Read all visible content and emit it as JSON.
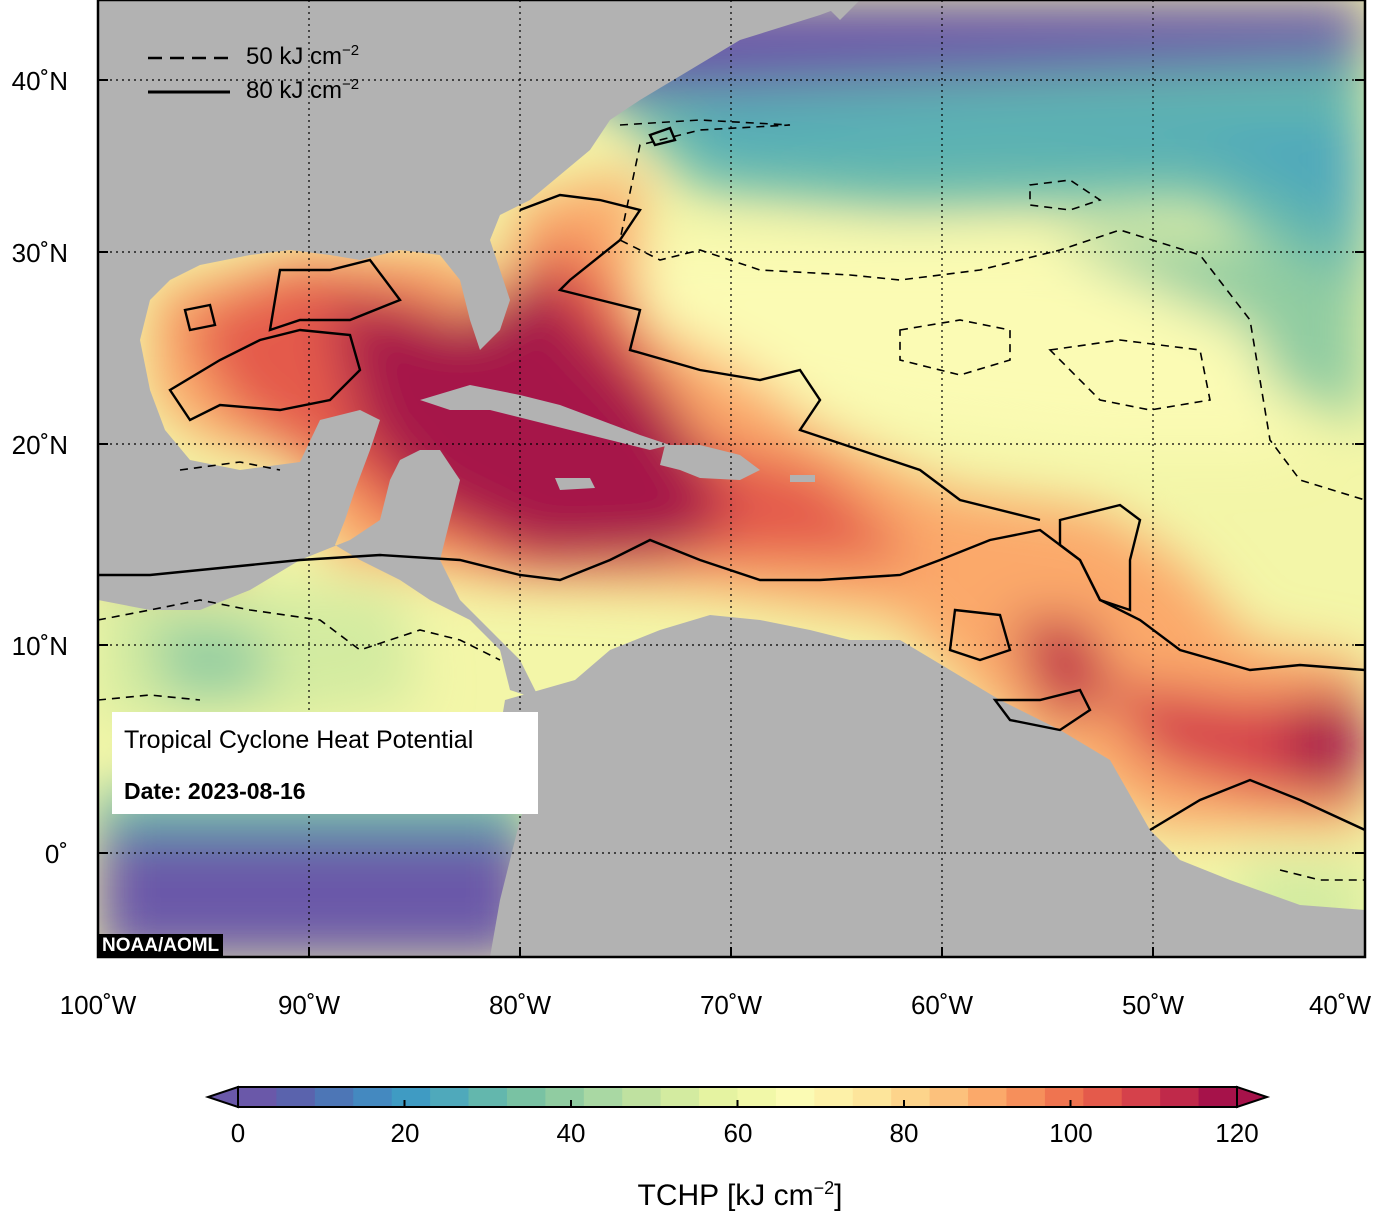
{
  "map": {
    "title": "Tropical Cyclone Heat Potential",
    "date_label": "Date: 2023-08-16",
    "credit": "NOAA/AOML",
    "legend": {
      "dashed_label": "50 kJ cm",
      "solid_label": "80 kJ cm",
      "superscript": "−2"
    },
    "lat_labels": [
      "40˚N",
      "30˚N",
      "20˚N",
      "10˚N",
      "0˚"
    ],
    "lon_labels": [
      "100˚W",
      "90˚W",
      "80˚W",
      "70˚W",
      "60˚W",
      "50˚W",
      "40˚W"
    ],
    "colorbar": {
      "ticks": [
        "0",
        "20",
        "40",
        "60",
        "80",
        "100",
        "120"
      ],
      "title": "TCHP [kJ cm",
      "title_sup": "−2",
      "title_end": "]",
      "colors": [
        "#6a58a9",
        "#5a63ad",
        "#4d76b6",
        "#4489c0",
        "#3f9bc3",
        "#4fa9bb",
        "#63b7ad",
        "#79c2a3",
        "#90cca1",
        "#a9d8a3",
        "#bfe1a0",
        "#d3eba0",
        "#e5f3a1",
        "#f1f8a8",
        "#fbfbb4",
        "#fdf1a8",
        "#fde59b",
        "#fdd48b",
        "#fcc17c",
        "#fba96a",
        "#f68f5b",
        "#ef7450",
        "#e45a4b",
        "#d5414b",
        "#c0294a",
        "#a6124a"
      ],
      "color_under": "#6a58a9",
      "color_over": "#a6124a"
    },
    "colors": {
      "land": "#b2b2b2",
      "low": "#6a58a9",
      "high": "#a6124a"
    }
  }
}
